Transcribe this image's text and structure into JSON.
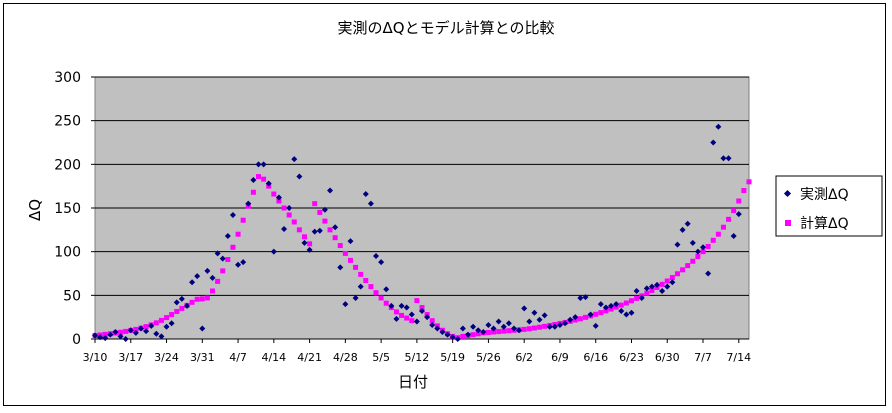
{
  "chart_data": {
    "type": "scatter",
    "title": "実測のΔQとモデル計算との比較",
    "xlabel": "日付",
    "ylabel": "ΔQ",
    "ylim": [
      0,
      300
    ],
    "yticks": [
      0,
      50,
      100,
      150,
      200,
      250,
      300
    ],
    "xlim": [
      "3/10",
      "7/16"
    ],
    "xticks": [
      "3/10",
      "3/17",
      "3/24",
      "3/31",
      "4/7",
      "4/14",
      "4/21",
      "4/28",
      "5/5",
      "5/12",
      "5/19",
      "5/26",
      "6/2",
      "6/9",
      "6/16",
      "6/23",
      "6/30",
      "7/7",
      "7/14"
    ],
    "grid": true,
    "legend_position": "right",
    "series": [
      {
        "name": "実測ΔQ",
        "color": "#000080",
        "marker": "diamond",
        "points": [
          [
            "3/10",
            4
          ],
          [
            "3/11",
            2
          ],
          [
            "3/12",
            1
          ],
          [
            "3/13",
            5
          ],
          [
            "3/14",
            8
          ],
          [
            "3/15",
            3
          ],
          [
            "3/16",
            0
          ],
          [
            "3/17",
            10
          ],
          [
            "3/18",
            7
          ],
          [
            "3/19",
            12
          ],
          [
            "3/20",
            9
          ],
          [
            "3/21",
            15
          ],
          [
            "3/22",
            6
          ],
          [
            "3/23",
            3
          ],
          [
            "3/24",
            14
          ],
          [
            "3/25",
            18
          ],
          [
            "3/26",
            42
          ],
          [
            "3/27",
            46
          ],
          [
            "3/28",
            38
          ],
          [
            "3/29",
            65
          ],
          [
            "3/30",
            72
          ],
          [
            "3/31",
            12
          ],
          [
            "4/1",
            78
          ],
          [
            "4/2",
            70
          ],
          [
            "4/3",
            98
          ],
          [
            "4/4",
            92
          ],
          [
            "4/5",
            118
          ],
          [
            "4/6",
            142
          ],
          [
            "4/7",
            85
          ],
          [
            "4/8",
            88
          ],
          [
            "4/9",
            155
          ],
          [
            "4/10",
            182
          ],
          [
            "4/11",
            200
          ],
          [
            "4/12",
            200
          ],
          [
            "4/13",
            178
          ],
          [
            "4/14",
            100
          ],
          [
            "4/15",
            162
          ],
          [
            "4/16",
            126
          ],
          [
            "4/17",
            150
          ],
          [
            "4/18",
            206
          ],
          [
            "4/19",
            186
          ],
          [
            "4/20",
            110
          ],
          [
            "4/21",
            102
          ],
          [
            "4/22",
            123
          ],
          [
            "4/23",
            124
          ],
          [
            "4/24",
            148
          ],
          [
            "4/25",
            170
          ],
          [
            "4/26",
            128
          ],
          [
            "4/27",
            82
          ],
          [
            "4/28",
            40
          ],
          [
            "4/29",
            112
          ],
          [
            "4/30",
            47
          ],
          [
            "5/1",
            60
          ],
          [
            "5/2",
            166
          ],
          [
            "5/3",
            155
          ],
          [
            "5/4",
            95
          ],
          [
            "5/5",
            88
          ],
          [
            "5/6",
            57
          ],
          [
            "5/7",
            38
          ],
          [
            "5/8",
            23
          ],
          [
            "5/9",
            38
          ],
          [
            "5/10",
            36
          ],
          [
            "5/11",
            28
          ],
          [
            "5/12",
            20
          ],
          [
            "5/13",
            32
          ],
          [
            "5/14",
            25
          ],
          [
            "5/15",
            16
          ],
          [
            "5/16",
            12
          ],
          [
            "5/17",
            8
          ],
          [
            "5/18",
            5
          ],
          [
            "5/19",
            2
          ],
          [
            "5/20",
            0
          ],
          [
            "5/21",
            12
          ],
          [
            "5/22",
            5
          ],
          [
            "5/23",
            14
          ],
          [
            "5/24",
            10
          ],
          [
            "5/25",
            8
          ],
          [
            "5/26",
            16
          ],
          [
            "5/27",
            12
          ],
          [
            "5/28",
            20
          ],
          [
            "5/29",
            14
          ],
          [
            "5/30",
            18
          ],
          [
            "5/31",
            12
          ],
          [
            "6/1",
            10
          ],
          [
            "6/2",
            35
          ],
          [
            "6/3",
            20
          ],
          [
            "6/4",
            30
          ],
          [
            "6/5",
            22
          ],
          [
            "6/6",
            27
          ],
          [
            "6/7",
            14
          ],
          [
            "6/8",
            14
          ],
          [
            "6/9",
            16
          ],
          [
            "6/10",
            18
          ],
          [
            "6/11",
            22
          ],
          [
            "6/12",
            25
          ],
          [
            "6/13",
            47
          ],
          [
            "6/14",
            48
          ],
          [
            "6/15",
            28
          ],
          [
            "6/16",
            15
          ],
          [
            "6/17",
            40
          ],
          [
            "6/18",
            36
          ],
          [
            "6/19",
            38
          ],
          [
            "6/20",
            40
          ],
          [
            "6/21",
            32
          ],
          [
            "6/22",
            28
          ],
          [
            "6/23",
            30
          ],
          [
            "6/24",
            55
          ],
          [
            "6/25",
            47
          ],
          [
            "6/26",
            58
          ],
          [
            "6/27",
            60
          ],
          [
            "6/28",
            62
          ],
          [
            "6/29",
            55
          ],
          [
            "6/30",
            60
          ],
          [
            "7/1",
            65
          ],
          [
            "7/2",
            108
          ],
          [
            "7/3",
            125
          ],
          [
            "7/4",
            132
          ],
          [
            "7/5",
            110
          ],
          [
            "7/6",
            100
          ],
          [
            "7/7",
            105
          ],
          [
            "7/8",
            75
          ],
          [
            "7/9",
            225
          ],
          [
            "7/10",
            243
          ],
          [
            "7/11",
            207
          ],
          [
            "7/12",
            207
          ],
          [
            "7/13",
            118
          ],
          [
            "7/14",
            143
          ]
        ]
      },
      {
        "name": "計算ΔQ",
        "color": "#ff00ff",
        "marker": "square",
        "points": [
          [
            "3/10",
            4
          ],
          [
            "3/11",
            4.6
          ],
          [
            "3/12",
            5.3
          ],
          [
            "3/13",
            6
          ],
          [
            "3/14",
            6.8
          ],
          [
            "3/15",
            7.7
          ],
          [
            "3/16",
            8.7
          ],
          [
            "3/17",
            9.8
          ],
          [
            "3/18",
            11
          ],
          [
            "3/19",
            12.5
          ],
          [
            "3/20",
            14.2
          ],
          [
            "3/21",
            16.2
          ],
          [
            "3/22",
            18.5
          ],
          [
            "3/23",
            21.3
          ],
          [
            "3/24",
            24.5
          ],
          [
            "3/25",
            28
          ],
          [
            "3/26",
            31.5
          ],
          [
            "3/27",
            35
          ],
          [
            "3/28",
            38.5
          ],
          [
            "3/29",
            42
          ],
          [
            "3/30",
            45.5
          ],
          [
            "3/31",
            46
          ],
          [
            "4/1",
            47
          ],
          [
            "4/2",
            55
          ],
          [
            "4/3",
            66
          ],
          [
            "4/4",
            78
          ],
          [
            "4/5",
            91
          ],
          [
            "4/6",
            105
          ],
          [
            "4/7",
            120
          ],
          [
            "4/8",
            136
          ],
          [
            "4/9",
            152
          ],
          [
            "4/10",
            168
          ],
          [
            "4/11",
            186
          ],
          [
            "4/12",
            183
          ],
          [
            "4/13",
            175
          ],
          [
            "4/14",
            166
          ],
          [
            "4/15",
            158
          ],
          [
            "4/16",
            150
          ],
          [
            "4/17",
            142
          ],
          [
            "4/18",
            134
          ],
          [
            "4/19",
            125
          ],
          [
            "4/20",
            117
          ],
          [
            "4/21",
            109
          ],
          [
            "4/22",
            155
          ],
          [
            "4/23",
            145
          ],
          [
            "4/24",
            135
          ],
          [
            "4/25",
            125
          ],
          [
            "4/26",
            116
          ],
          [
            "4/27",
            107
          ],
          [
            "4/28",
            98
          ],
          [
            "4/29",
            90
          ],
          [
            "4/30",
            82
          ],
          [
            "5/1",
            74
          ],
          [
            "5/2",
            67
          ],
          [
            "5/3",
            60
          ],
          [
            "5/4",
            53
          ],
          [
            "5/5",
            47
          ],
          [
            "5/6",
            41
          ],
          [
            "5/7",
            36
          ],
          [
            "5/8",
            31
          ],
          [
            "5/9",
            27
          ],
          [
            "5/10",
            24
          ],
          [
            "5/11",
            21
          ],
          [
            "5/12",
            44
          ],
          [
            "5/13",
            36
          ],
          [
            "5/14",
            28
          ],
          [
            "5/15",
            21
          ],
          [
            "5/16",
            15
          ],
          [
            "5/17",
            10
          ],
          [
            "5/18",
            6
          ],
          [
            "5/19",
            3
          ],
          [
            "5/20",
            1.5
          ],
          [
            "5/21",
            3
          ],
          [
            "5/22",
            4
          ],
          [
            "5/23",
            5
          ],
          [
            "5/24",
            6
          ],
          [
            "5/25",
            7
          ],
          [
            "5/26",
            7.5
          ],
          [
            "5/27",
            8
          ],
          [
            "5/28",
            8.5
          ],
          [
            "5/29",
            9
          ],
          [
            "5/30",
            9.5
          ],
          [
            "5/31",
            10
          ],
          [
            "6/1",
            10.5
          ],
          [
            "6/2",
            11
          ],
          [
            "6/3",
            11.8
          ],
          [
            "6/4",
            12.6
          ],
          [
            "6/5",
            13.5
          ],
          [
            "6/6",
            14.5
          ],
          [
            "6/7",
            15.5
          ],
          [
            "6/8",
            16.6
          ],
          [
            "6/9",
            17.8
          ],
          [
            "6/10",
            19
          ],
          [
            "6/11",
            20.3
          ],
          [
            "6/12",
            21.7
          ],
          [
            "6/13",
            23.2
          ],
          [
            "6/14",
            24.8
          ],
          [
            "6/15",
            26.5
          ],
          [
            "6/16",
            28.3
          ],
          [
            "6/17",
            30.2
          ],
          [
            "6/18",
            32.2
          ],
          [
            "6/19",
            34.3
          ],
          [
            "6/20",
            36.5
          ],
          [
            "6/21",
            38.8
          ],
          [
            "6/22",
            41.2
          ],
          [
            "6/23",
            43.8
          ],
          [
            "6/24",
            46.5
          ],
          [
            "6/25",
            49.4
          ],
          [
            "6/26",
            52.4
          ],
          [
            "6/27",
            55.6
          ],
          [
            "6/28",
            59
          ],
          [
            "6/29",
            62.6
          ],
          [
            "6/30",
            66.4
          ],
          [
            "7/1",
            70.4
          ],
          [
            "7/2",
            74.7
          ],
          [
            "7/3",
            79.2
          ],
          [
            "7/4",
            84
          ],
          [
            "7/5",
            89
          ],
          [
            "7/6",
            94.4
          ],
          [
            "7/7",
            100
          ],
          [
            "7/8",
            106
          ],
          [
            "7/9",
            113
          ],
          [
            "7/10",
            120
          ],
          [
            "7/11",
            128
          ],
          [
            "7/12",
            137
          ],
          [
            "7/13",
            147
          ],
          [
            "7/14",
            158
          ],
          [
            "7/15",
            170
          ],
          [
            "7/16",
            180
          ]
        ]
      }
    ]
  }
}
